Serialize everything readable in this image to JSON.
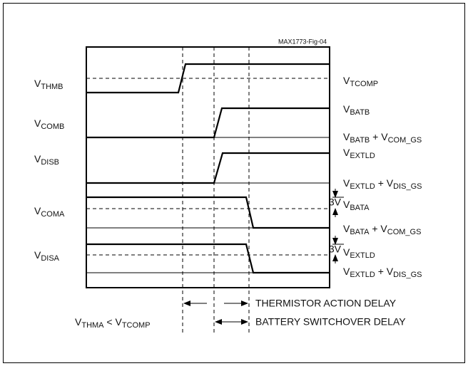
{
  "figure_id": "MAX1773-Fig-04",
  "left_labels": [
    [
      "V",
      "THMB"
    ],
    [
      "V",
      "COMB"
    ],
    [
      "V",
      "DISB"
    ],
    [
      "V",
      "COMA"
    ],
    [
      "V",
      "DISA"
    ]
  ],
  "right_labels": [
    [
      "V",
      "TCOMP"
    ],
    [
      "V",
      "BATB"
    ],
    [
      "V",
      "BATB",
      " + V",
      "COM_GS"
    ],
    [
      "V",
      "EXTLD"
    ],
    [
      "V",
      "EXTLD",
      " + V",
      "DIS_GS"
    ],
    [
      "V",
      "BATA"
    ],
    [
      "V",
      "BATA",
      " + V",
      "COM_GS"
    ],
    [
      "V",
      "EXTLD"
    ],
    [
      "V",
      "EXTLD",
      " + V",
      "DIS_GS"
    ]
  ],
  "three_volt": [
    "3V",
    "3V"
  ],
  "delays": [
    "THERMISTOR ACTION DELAY",
    "BATTERY SWITCHOVER DELAY"
  ],
  "condition": [
    "V",
    "THMA",
    " < V",
    "TCOMP"
  ]
}
